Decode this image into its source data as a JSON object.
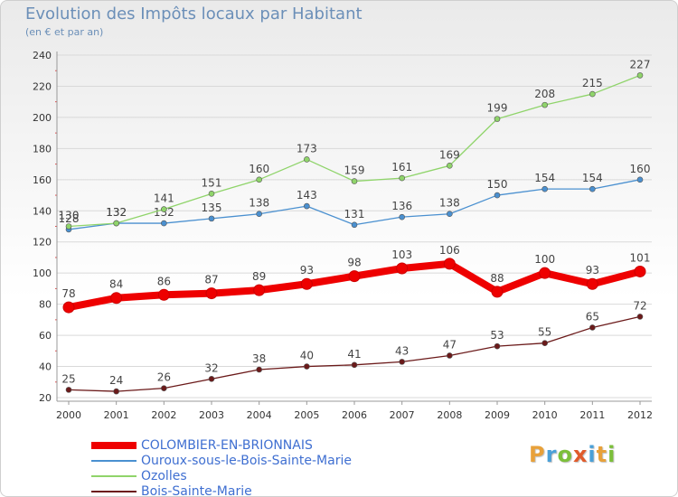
{
  "header": {
    "title": "Evolution des Impôts locaux par Habitant",
    "subtitle": "(en € et par an)"
  },
  "logo": {
    "letters": [
      "P",
      "r",
      "o",
      "x",
      "i",
      "t",
      "i"
    ],
    "colors": [
      "#e8a13a",
      "#4aa0d8",
      "#7cbf3a",
      "#e05b2b",
      "#4aa0d8",
      "#e8a13a",
      "#7cbf3a"
    ]
  },
  "chart_data": {
    "type": "line",
    "title": "Evolution des Impôts locaux par Habitant",
    "subtitle": "(en € et par an)",
    "xlabel": "",
    "ylabel": "",
    "x": [
      "2000",
      "2001",
      "2002",
      "2003",
      "2004",
      "2005",
      "2006",
      "2007",
      "2008",
      "2009",
      "2010",
      "2011",
      "2012"
    ],
    "ylim": [
      20,
      240
    ],
    "yticks": [
      20,
      40,
      60,
      80,
      100,
      120,
      140,
      160,
      180,
      200,
      220,
      240
    ],
    "grid": "horizontal",
    "legend_position": "bottom-left",
    "series": [
      {
        "name": "COLOMBIER-EN-BRIONNAIS",
        "color": "#ee0000",
        "emphasis": "bold",
        "values": [
          78,
          84,
          86,
          87,
          89,
          93,
          98,
          103,
          106,
          88,
          100,
          93,
          101
        ],
        "label_offset": "above"
      },
      {
        "name": "Ouroux-sous-le-Bois-Sainte-Marie",
        "color": "#4a90d0",
        "emphasis": "normal",
        "values": [
          128,
          132,
          132,
          135,
          138,
          143,
          131,
          136,
          138,
          150,
          154,
          154,
          160
        ],
        "label_offset": "above"
      },
      {
        "name": "Ozolles",
        "color": "#8fd46a",
        "emphasis": "normal",
        "values": [
          130,
          132,
          141,
          151,
          160,
          173,
          159,
          161,
          169,
          199,
          208,
          215,
          227
        ],
        "label_offset": "above"
      },
      {
        "name": "Bois-Sainte-Marie",
        "color": "#6b1a1a",
        "emphasis": "normal",
        "values": [
          25,
          24,
          26,
          32,
          38,
          40,
          41,
          43,
          47,
          53,
          55,
          65,
          72
        ],
        "label_offset": "above"
      }
    ]
  }
}
